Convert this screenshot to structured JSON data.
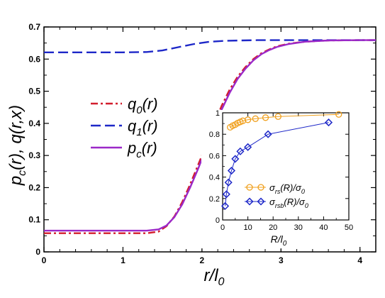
{
  "chart_data": [
    {
      "type": "line",
      "xlabel": "r/l0",
      "ylabel": "p_c(r), q(r,x)",
      "xlim": [
        0,
        4.2
      ],
      "ylim": [
        0,
        0.7
      ],
      "x_ticks": [
        "0",
        "1",
        "2",
        "3",
        "4"
      ],
      "y_ticks": [
        "0",
        "0.1",
        "0.2",
        "0.3",
        "0.4",
        "0.5",
        "0.6",
        "0.7"
      ],
      "legend_position": "left-middle",
      "series": [
        {
          "name": "q0(r)",
          "color": "#d21e2d",
          "style": "dash-dot",
          "x": [
            0,
            0.5,
            1.0,
            1.3,
            1.45,
            1.55,
            1.65,
            1.75,
            1.85,
            1.95,
            2.05,
            2.15,
            2.25,
            2.35,
            2.45,
            2.55,
            2.65,
            2.75,
            2.85,
            2.95,
            3.1,
            3.3,
            3.6,
            4.0,
            4.2
          ],
          "y": [
            0.058,
            0.058,
            0.058,
            0.058,
            0.063,
            0.08,
            0.11,
            0.155,
            0.21,
            0.27,
            0.33,
            0.395,
            0.455,
            0.505,
            0.545,
            0.575,
            0.6,
            0.618,
            0.63,
            0.64,
            0.648,
            0.654,
            0.658,
            0.659,
            0.659
          ]
        },
        {
          "name": "q1(r)",
          "color": "#1e28c8",
          "style": "dashed",
          "x": [
            0,
            0.5,
            1.0,
            1.3,
            1.5,
            1.7,
            1.9,
            2.1,
            2.3,
            2.5,
            2.7,
            3.0,
            3.5,
            4.0,
            4.2
          ],
          "y": [
            0.621,
            0.621,
            0.621,
            0.622,
            0.627,
            0.637,
            0.647,
            0.654,
            0.657,
            0.658,
            0.659,
            0.659,
            0.659,
            0.659,
            0.659
          ]
        },
        {
          "name": "pc(r)",
          "color": "#9b28c8",
          "style": "solid",
          "x": [
            0,
            0.5,
            1.0,
            1.3,
            1.45,
            1.55,
            1.65,
            1.75,
            1.85,
            1.95,
            2.05,
            2.15,
            2.25,
            2.35,
            2.45,
            2.55,
            2.65,
            2.75,
            2.85,
            2.95,
            3.1,
            3.3,
            3.6,
            4.0,
            4.2
          ],
          "y": [
            0.066,
            0.066,
            0.066,
            0.066,
            0.07,
            0.082,
            0.108,
            0.148,
            0.2,
            0.258,
            0.32,
            0.383,
            0.443,
            0.495,
            0.538,
            0.57,
            0.596,
            0.615,
            0.628,
            0.638,
            0.647,
            0.654,
            0.658,
            0.659,
            0.659
          ]
        }
      ]
    },
    {
      "type": "line",
      "xlabel": "R/l0",
      "ylabel": "",
      "xlim": [
        0,
        50
      ],
      "ylim": [
        0,
        1
      ],
      "x_ticks": [
        "0",
        "10",
        "20",
        "30",
        "40",
        "50"
      ],
      "y_ticks": [
        "0",
        "0.2",
        "0.4",
        "0.6",
        "0.8",
        "1"
      ],
      "legend_position": "lower-left",
      "series": [
        {
          "name": "σrs(R)/σ0",
          "color": "#f0a01e",
          "marker": "circle",
          "x": [
            3,
            4,
            5,
            6,
            7,
            8,
            10,
            13,
            17,
            22,
            46
          ],
          "y": [
            0.865,
            0.88,
            0.89,
            0.905,
            0.915,
            0.925,
            0.935,
            0.945,
            0.955,
            0.965,
            0.985
          ]
        },
        {
          "name": "σrsb(R)/σ0",
          "color": "#1e28c8",
          "marker": "diamond",
          "x": [
            1,
            1.5,
            2.3,
            3.5,
            5,
            7,
            10,
            18,
            42
          ],
          "y": [
            0.13,
            0.24,
            0.35,
            0.46,
            0.57,
            0.64,
            0.68,
            0.8,
            0.91
          ]
        }
      ]
    }
  ]
}
